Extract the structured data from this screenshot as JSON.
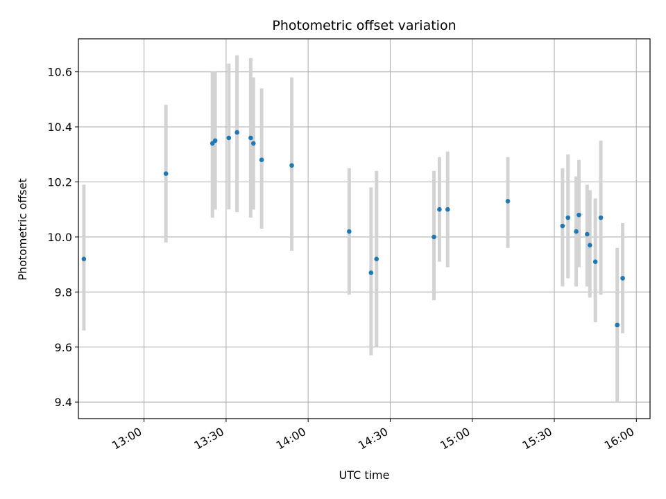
{
  "chart_data": {
    "type": "scatter",
    "title": "Photometric offset variation",
    "xlabel": "UTC time",
    "ylabel": "Photometric offset",
    "x_ticks": [
      "13:00",
      "13:30",
      "14:00",
      "14:30",
      "15:00",
      "15:30",
      "16:00"
    ],
    "y_ticks": [
      "9.4",
      "9.6",
      "9.8",
      "10.0",
      "10.2",
      "10.4",
      "10.6"
    ],
    "xlim": [
      "12:36",
      "16:05"
    ],
    "ylim": [
      9.34,
      10.72
    ],
    "grid": true,
    "error_color": "#d3d3d3",
    "point_color": "#1f77b4",
    "points": [
      {
        "x": "12:38",
        "y": 9.92,
        "ylo": 9.66,
        "yhi": 10.19
      },
      {
        "x": "13:08",
        "y": 10.23,
        "ylo": 9.98,
        "yhi": 10.48
      },
      {
        "x": "13:25",
        "y": 10.34,
        "ylo": 10.07,
        "yhi": 10.6
      },
      {
        "x": "13:26",
        "y": 10.35,
        "ylo": 10.1,
        "yhi": 10.6
      },
      {
        "x": "13:31",
        "y": 10.36,
        "ylo": 10.1,
        "yhi": 10.63
      },
      {
        "x": "13:34",
        "y": 10.38,
        "ylo": 10.09,
        "yhi": 10.66
      },
      {
        "x": "13:39",
        "y": 10.36,
        "ylo": 10.07,
        "yhi": 10.65
      },
      {
        "x": "13:40",
        "y": 10.34,
        "ylo": 10.1,
        "yhi": 10.58
      },
      {
        "x": "13:43",
        "y": 10.28,
        "ylo": 10.03,
        "yhi": 10.54
      },
      {
        "x": "13:54",
        "y": 10.26,
        "ylo": 9.95,
        "yhi": 10.58
      },
      {
        "x": "14:15",
        "y": 10.02,
        "ylo": 9.79,
        "yhi": 10.25
      },
      {
        "x": "14:23",
        "y": 9.87,
        "ylo": 9.57,
        "yhi": 10.18
      },
      {
        "x": "14:25",
        "y": 9.92,
        "ylo": 9.6,
        "yhi": 10.24
      },
      {
        "x": "14:46",
        "y": 10.0,
        "ylo": 9.77,
        "yhi": 10.24
      },
      {
        "x": "14:48",
        "y": 10.1,
        "ylo": 9.91,
        "yhi": 10.29
      },
      {
        "x": "14:51",
        "y": 10.1,
        "ylo": 9.89,
        "yhi": 10.31
      },
      {
        "x": "15:13",
        "y": 10.13,
        "ylo": 9.96,
        "yhi": 10.29
      },
      {
        "x": "15:33",
        "y": 10.04,
        "ylo": 9.82,
        "yhi": 10.25
      },
      {
        "x": "15:35",
        "y": 10.07,
        "ylo": 9.85,
        "yhi": 10.3
      },
      {
        "x": "15:38",
        "y": 10.02,
        "ylo": 9.82,
        "yhi": 10.22
      },
      {
        "x": "15:39",
        "y": 10.08,
        "ylo": 9.89,
        "yhi": 10.28
      },
      {
        "x": "15:42",
        "y": 10.01,
        "ylo": 9.82,
        "yhi": 10.19
      },
      {
        "x": "15:43",
        "y": 9.97,
        "ylo": 9.78,
        "yhi": 10.17
      },
      {
        "x": "15:45",
        "y": 9.91,
        "ylo": 9.69,
        "yhi": 10.14
      },
      {
        "x": "15:47",
        "y": 10.07,
        "ylo": 9.79,
        "yhi": 10.35
      },
      {
        "x": "15:53",
        "y": 9.68,
        "ylo": 9.4,
        "yhi": 9.96
      },
      {
        "x": "15:55",
        "y": 9.85,
        "ylo": 9.65,
        "yhi": 10.05
      }
    ]
  }
}
